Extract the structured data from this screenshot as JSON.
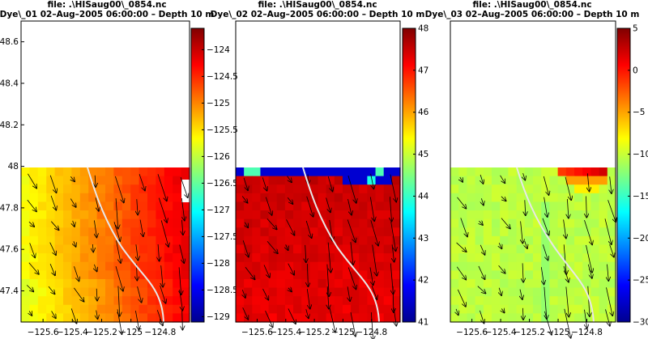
{
  "chart_data": [
    {
      "type": "heatmap",
      "file_line": "file: .\\HISaug00\\_0854.nc",
      "title": "Dye\\_01 02–Aug–2005 06:00:00   – Depth 10 m",
      "xlim": [
        -125.75,
        -124.6
      ],
      "ylim": [
        47.25,
        48.7
      ],
      "x_ticks": [
        "−125.6",
        "−125.4",
        "−125.2",
        "−125",
        "−124.8"
      ],
      "y_ticks": [
        "48.6",
        "48.4",
        "48.2",
        "48",
        "47.8",
        "47.6",
        "47.4"
      ],
      "colorbar": {
        "range": [
          -129.1,
          -123.6
        ],
        "ticks": [
          "−124",
          "−124.5",
          "−125",
          "−125.5",
          "−126",
          "−126.5",
          "−127",
          "−127.5",
          "−128",
          "−128.5",
          "−129"
        ]
      }
    },
    {
      "type": "heatmap",
      "file_line": "file: .\\HISaug00\\_0854.nc",
      "title": "Dye\\_02 02–Aug–2005 06:00:00   – Depth 10 m",
      "xlim": [
        -125.75,
        -124.6
      ],
      "ylim": [
        47.25,
        48.7
      ],
      "x_ticks": [
        "−125.6",
        "−125.4",
        "−125.2",
        "−125",
        "−124.8"
      ],
      "colorbar": {
        "range": [
          41,
          48
        ],
        "ticks": [
          "48",
          "47",
          "46",
          "45",
          "44",
          "43",
          "42",
          "41"
        ]
      }
    },
    {
      "type": "heatmap",
      "file_line": "file: .\\HISaug00\\_0854.nc",
      "title": "Dye\\_03 02–Aug–2005 06:00:00   – Depth 10 m",
      "xlim": [
        -125.75,
        -124.6
      ],
      "ylim": [
        47.25,
        48.7
      ],
      "x_ticks": [
        "−125.6",
        "−125.4",
        "−125.2",
        "−125",
        "−124.8"
      ],
      "colorbar": {
        "range": [
          -30,
          5
        ],
        "ticks": [
          "5",
          "0",
          "−5",
          "−10",
          "−15",
          "−20",
          "−25",
          "−30"
        ]
      }
    }
  ]
}
